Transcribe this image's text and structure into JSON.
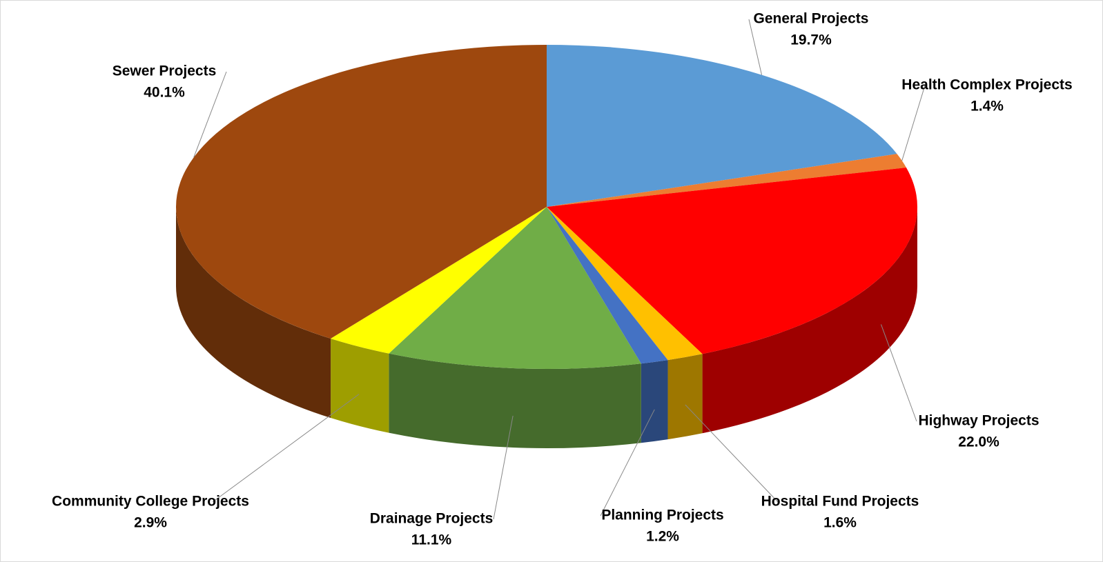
{
  "chart_data": {
    "type": "pie",
    "categories": [
      "General Projects",
      "Health Complex Projects",
      "Highway Projects",
      "Hospital Fund Projects",
      "Planning Projects",
      "Drainage Projects",
      "Community College Projects",
      "Sewer Projects"
    ],
    "values": [
      19.7,
      1.4,
      22.0,
      1.6,
      1.2,
      11.1,
      2.9,
      40.1
    ],
    "value_labels": [
      "19.7%",
      "1.4%",
      "22.0%",
      "1.6%",
      "1.2%",
      "11.1%",
      "2.9%",
      "40.1%"
    ],
    "colors": [
      "#5b9bd5",
      "#ed7d31",
      "#ff0000",
      "#ffc000",
      "#4472c4",
      "#70ad47",
      "#ffff00",
      "#9e480e"
    ]
  }
}
